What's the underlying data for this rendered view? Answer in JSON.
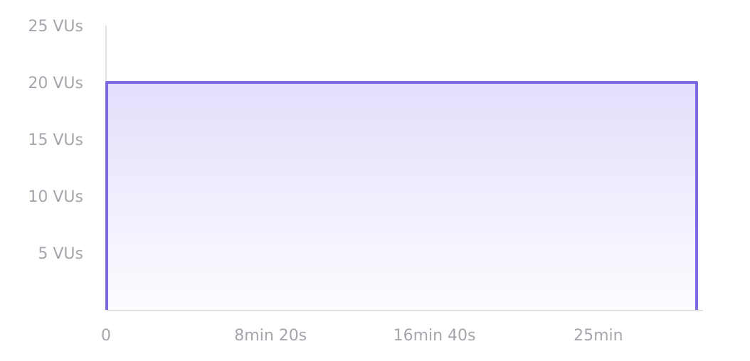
{
  "chart_data": {
    "type": "area",
    "x_unit": "seconds",
    "x": [
      0,
      0,
      1800,
      1800
    ],
    "values": [
      0,
      20,
      20,
      0
    ],
    "xlim": [
      0,
      1800
    ],
    "ylim": [
      0,
      25
    ],
    "x_ticks": [
      {
        "value": 0,
        "label": "0"
      },
      {
        "value": 500,
        "label": "8min 20s"
      },
      {
        "value": 1000,
        "label": "16min 40s"
      },
      {
        "value": 1500,
        "label": "25min"
      }
    ],
    "y_ticks": [
      {
        "value": 5,
        "label": "5 VUs"
      },
      {
        "value": 10,
        "label": "10 VUs"
      },
      {
        "value": 15,
        "label": "15 VUs"
      },
      {
        "value": 20,
        "label": "20 VUs"
      },
      {
        "value": 25,
        "label": "25 VUs"
      }
    ],
    "grid": false,
    "colors": {
      "line": "#7b6be0",
      "fill_top": "#e3defb",
      "fill_bottom": "#fdfcff",
      "axis": "#e1e2e5",
      "tick_text": "#a3a6ac"
    }
  }
}
